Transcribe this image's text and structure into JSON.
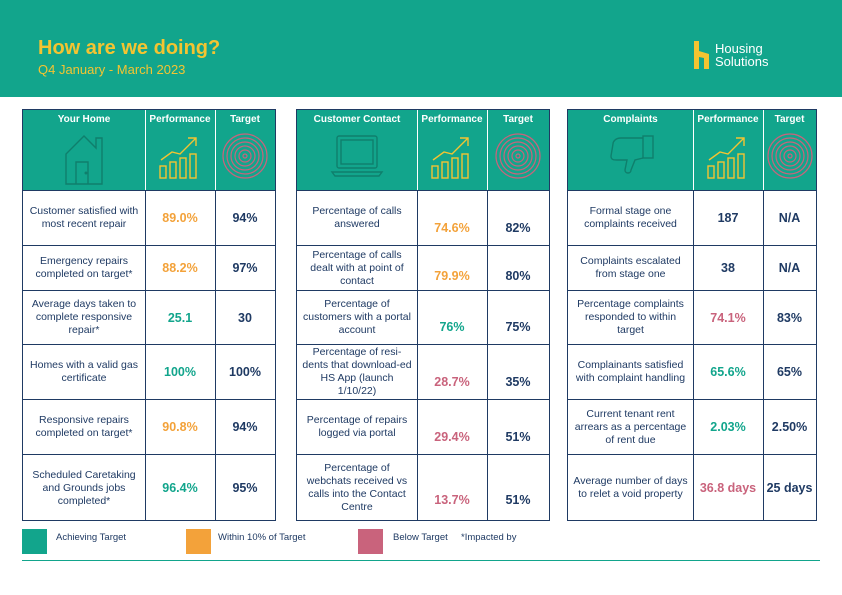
{
  "header": {
    "title": "How are we doing?",
    "subtitle": "Q4 January - March 2023",
    "logo_line1": "Housing",
    "logo_line2": "Solutions"
  },
  "colors": {
    "teal": "#12a58c",
    "navy": "#1f3a63",
    "amber": "#f3a23a",
    "red": "#c9637c",
    "yellow": "#f4c431"
  },
  "tables": [
    {
      "title": "Your Home",
      "perf_label": "Performance",
      "target_label": "Target",
      "icon": "house-icon",
      "rows": [
        {
          "measure": "Customer satisfied with most recent repair",
          "performance": "89.0%",
          "status": "amber",
          "target": "94%"
        },
        {
          "measure": "Emergency repairs completed on target*",
          "performance": "88.2%",
          "status": "amber",
          "target": "97%"
        },
        {
          "measure": "Average days taken to complete responsive repair*",
          "performance": "25.1",
          "status": "green",
          "target": "30"
        },
        {
          "measure": "Homes with a valid gas certificate",
          "performance": "100%",
          "status": "green",
          "target": "100%"
        },
        {
          "measure": "Responsive repairs completed on target*",
          "performance": "90.8%",
          "status": "amber",
          "target": "94%"
        },
        {
          "measure": "Scheduled Caretaking and Grounds jobs completed*",
          "performance": "96.4%",
          "status": "green",
          "target": "95%"
        }
      ]
    },
    {
      "title": "Customer Contact",
      "perf_label": "Performance",
      "target_label": "Target",
      "icon": "laptop-icon",
      "rows": [
        {
          "measure": "Percentage of calls answered",
          "performance": "74.6%",
          "status": "amber",
          "target": "82%"
        },
        {
          "measure": "Percentage of calls dealt with at point of contact",
          "performance": "79.9%",
          "status": "amber",
          "target": "80%"
        },
        {
          "measure": "Percentage of customers with a portal account",
          "performance": "76%",
          "status": "green",
          "target": "75%"
        },
        {
          "measure": "Percentage of resi-dents that download-ed HS App (launch 1/10/22)",
          "performance": "28.7%",
          "status": "red",
          "target": "35%"
        },
        {
          "measure": "Percentage of repairs logged via portal",
          "performance": "29.4%",
          "status": "red",
          "target": "51%"
        },
        {
          "measure": "Percentage of webchats received vs calls into the Contact Centre",
          "performance": "13.7%",
          "status": "red",
          "target": "51%"
        }
      ]
    },
    {
      "title": "Complaints",
      "perf_label": "Performance",
      "target_label": "Target",
      "icon": "thumbs-down-icon",
      "rows": [
        {
          "measure": "Formal stage one complaints received",
          "performance": "187",
          "status": "neutral",
          "target": "N/A"
        },
        {
          "measure": "Complaints escalated from stage one",
          "performance": "38",
          "status": "neutral",
          "target": "N/A"
        },
        {
          "measure": "Percentage complaints responded to within target",
          "performance": "74.1%",
          "status": "red",
          "target": "83%"
        },
        {
          "measure": "Complainants satisfied with complaint handling",
          "performance": "65.6%",
          "status": "green",
          "target": "65%"
        },
        {
          "measure": "Current tenant rent arrears as a percentage of rent due",
          "performance": "2.03%",
          "status": "green",
          "target": "2.50%"
        },
        {
          "measure": "Average number of days to relet a void property",
          "performance": "36.8 days",
          "status": "red",
          "target": "25 days"
        }
      ]
    }
  ],
  "legend": {
    "achieving": "Achieving Target",
    "within": "Within 10% of Target",
    "below": "Below Target",
    "note": "*Impacted by"
  }
}
